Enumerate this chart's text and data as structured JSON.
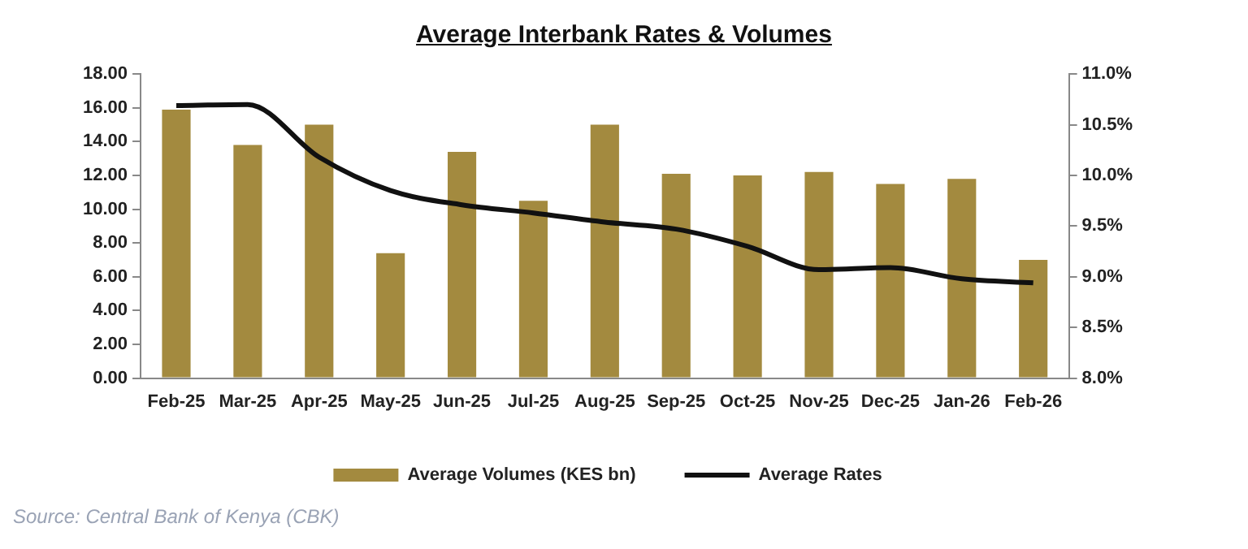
{
  "chart_data": {
    "type": "bar",
    "title": "Average Interbank Rates & Volumes",
    "categories": [
      "Feb-25",
      "Mar-25",
      "Apr-25",
      "May-25",
      "Jun-25",
      "Jul-25",
      "Aug-25",
      "Sep-25",
      "Oct-25",
      "Nov-25",
      "Dec-25",
      "Jan-26",
      "Feb-26"
    ],
    "series": [
      {
        "name": "Average Volumes (KES bn)",
        "color": "#a38a3f",
        "values": [
          15.9,
          13.8,
          15.0,
          7.4,
          13.4,
          10.5,
          15.0,
          12.1,
          12.0,
          12.2,
          11.5,
          11.8,
          7.0
        ]
      },
      {
        "name": "Average Rates",
        "type": "line",
        "axis": "y2",
        "color": "#111111",
        "values": [
          10.69,
          10.7,
          10.18,
          9.85,
          9.71,
          9.63,
          9.54,
          9.47,
          9.3,
          9.07,
          9.09,
          8.98,
          8.94
        ]
      }
    ],
    "ylim": [
      0,
      18
    ],
    "yticks": [
      {
        "value": 0,
        "label": "0.00"
      },
      {
        "value": 2,
        "label": "2.00"
      },
      {
        "value": 4,
        "label": "4.00"
      },
      {
        "value": 6,
        "label": "6.00"
      },
      {
        "value": 8,
        "label": "8.00"
      },
      {
        "value": 10,
        "label": "10.00"
      },
      {
        "value": 12,
        "label": "12.00"
      },
      {
        "value": 14,
        "label": "14.00"
      },
      {
        "value": 16,
        "label": "16.00"
      },
      {
        "value": 18,
        "label": "18.00"
      }
    ],
    "y2lim": [
      8,
      11
    ],
    "y2ticks": [
      {
        "value": 8,
        "label": "8.0%"
      },
      {
        "value": 8.5,
        "label": "8.5%"
      },
      {
        "value": 9,
        "label": "9.0%"
      },
      {
        "value": 9.5,
        "label": "9.5%"
      },
      {
        "value": 10,
        "label": "10.0%"
      },
      {
        "value": 10.5,
        "label": "10.5%"
      },
      {
        "value": 11,
        "label": "11.0%"
      }
    ],
    "grid": false,
    "legend": "bottom",
    "marker": "none",
    "annotations": [
      "Source: Central Bank of Kenya (CBK)"
    ]
  }
}
